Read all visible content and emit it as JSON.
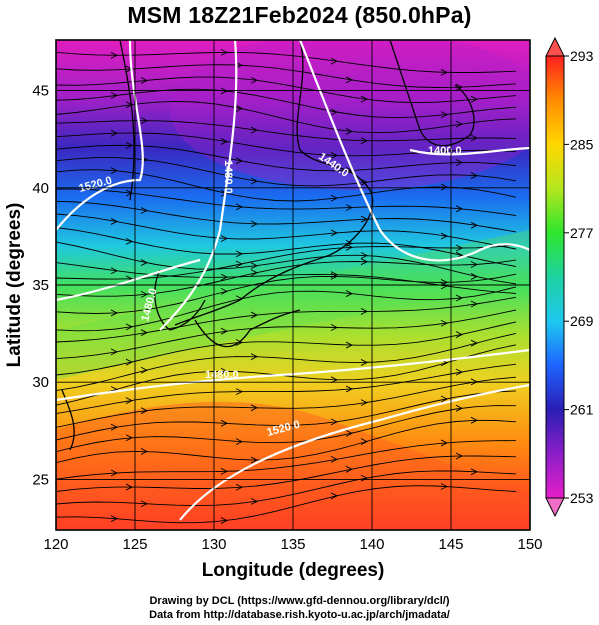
{
  "title": "MSM 18Z21Feb2024 (850.0hPa)",
  "axes": {
    "xlabel": "Longitude (degrees)",
    "ylabel": "Latitude  (degrees)",
    "xticks": [
      "120",
      "125",
      "130",
      "135",
      "140",
      "145",
      "150"
    ],
    "yticks": [
      "25",
      "30",
      "35",
      "40",
      "45"
    ],
    "xrange": [
      120,
      150
    ],
    "yrange": [
      22.4,
      47.6
    ]
  },
  "colorbar": {
    "labels": [
      "293",
      "285",
      "277",
      "269",
      "261",
      "253"
    ],
    "min": 253,
    "max": 293,
    "colors": [
      "#ff2020",
      "#ff8c00",
      "#ffd700",
      "#b4e61e",
      "#2ee62e",
      "#1ed2a0",
      "#1ec8f0",
      "#1e64ff",
      "#2a1eb4",
      "#8c1ec8",
      "#e61ec8"
    ]
  },
  "contours": [
    {
      "label": "1400.0"
    },
    {
      "label": "1440.0"
    },
    {
      "label": "1480.0"
    },
    {
      "label": "1520.0"
    },
    {
      "label": "1480.0"
    },
    {
      "label": "1480.0"
    },
    {
      "label": "1520.0"
    }
  ],
  "credits": {
    "line1": "Drawing by DCL (https://www.gfd-dennou.org/library/dcl/)",
    "line2": "Data from http://database.rish.kyoto-u.ac.jp/arch/jmadata/"
  }
}
